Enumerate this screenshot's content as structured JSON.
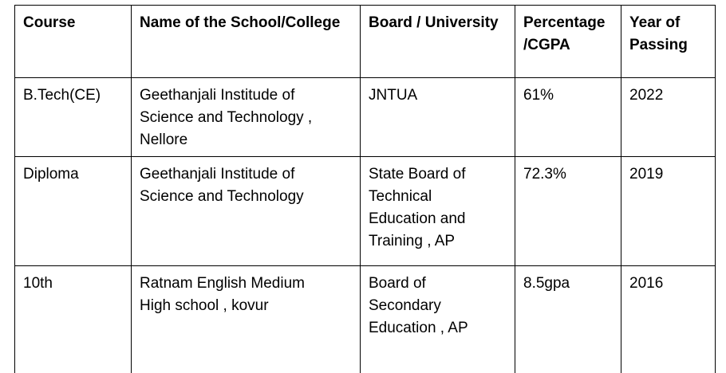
{
  "table": {
    "headers": {
      "course": "Course",
      "school": "Name of the School/College",
      "board": "Board / University",
      "percentage": "Percentage\n/CGPA",
      "year": "Year of\nPassing"
    },
    "rows": [
      {
        "course": "B.Tech(CE)",
        "school": "Geethanjali Institude of\nScience and Technology ,\nNellore",
        "board": "JNTUA",
        "percentage": "61%",
        "year": "2022"
      },
      {
        "course": "Diploma",
        "school": " Geethanjali Institude of\nScience and Technology",
        "board": "State Board of\nTechnical\nEducation and\nTraining , AP",
        "percentage": "72.3%",
        "year": "2019"
      },
      {
        "course": "10th",
        "school": "Ratnam English Medium\nHigh school , kovur",
        "board": "Board of\nSecondary\nEducation , AP",
        "percentage": "8.5gpa",
        "year": "2016"
      }
    ]
  }
}
